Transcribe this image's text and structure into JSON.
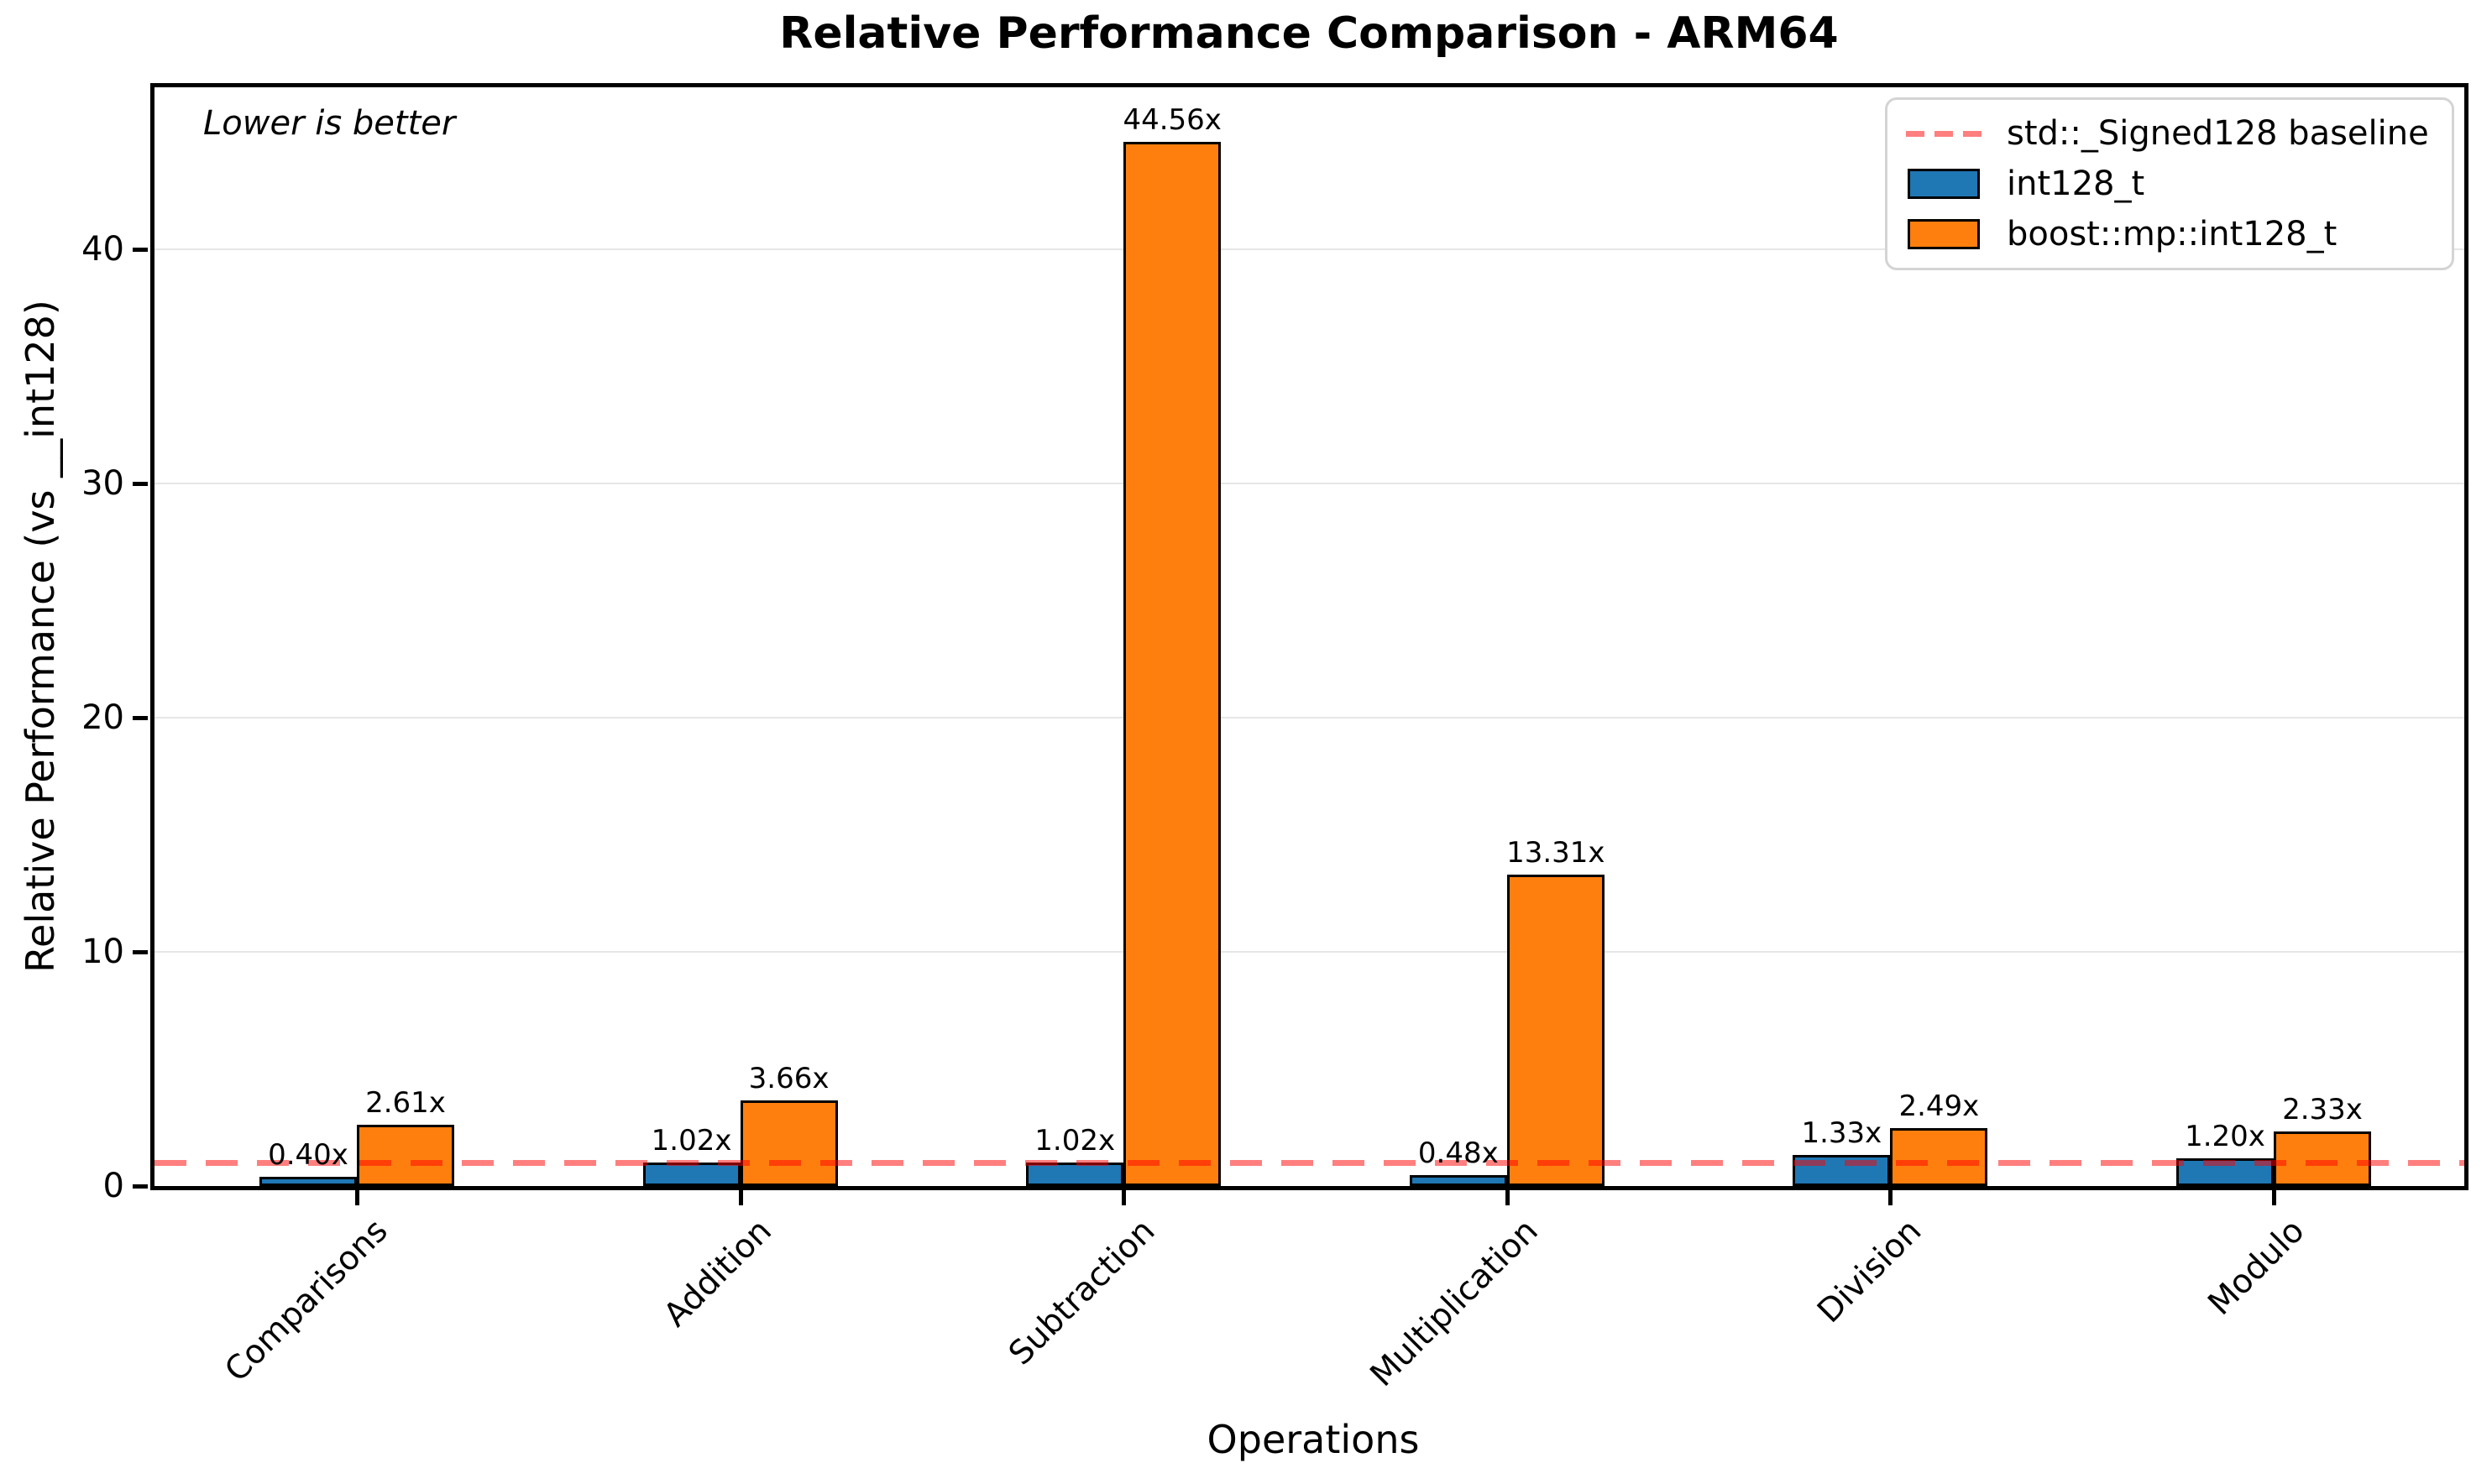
{
  "chart_data": {
    "type": "bar",
    "title": "Relative Performance Comparison - ARM64",
    "xlabel": "Operations",
    "ylabel": "Relative Performance (vs __int128)",
    "annotation": "Lower is better",
    "categories": [
      "Comparisons",
      "Addition",
      "Subtraction",
      "Multiplication",
      "Division",
      "Modulo"
    ],
    "series": [
      {
        "name": "int128_t",
        "color": "#1f77b4",
        "values": [
          0.4,
          1.02,
          1.02,
          0.48,
          1.33,
          1.2
        ],
        "value_labels": [
          "0.40x",
          "1.02x",
          "1.02x",
          "0.48x",
          "1.33x",
          "1.20x"
        ]
      },
      {
        "name": "boost::mp::int128_t",
        "color": "#ff7f0e",
        "values": [
          2.61,
          3.66,
          44.56,
          13.31,
          2.49,
          2.33
        ],
        "value_labels": [
          "2.61x",
          "3.66x",
          "44.56x",
          "13.31x",
          "2.49x",
          "2.33x"
        ]
      }
    ],
    "baseline": {
      "label": "std::_Signed128 baseline",
      "value": 1,
      "color": "rgba(255,0,0,0.5)"
    },
    "yticks": [
      0,
      10,
      20,
      30,
      40
    ],
    "ylim": [
      0,
      46.9
    ],
    "grid": true,
    "legend_position": "upper right",
    "bar_edge_color": "#000000"
  }
}
